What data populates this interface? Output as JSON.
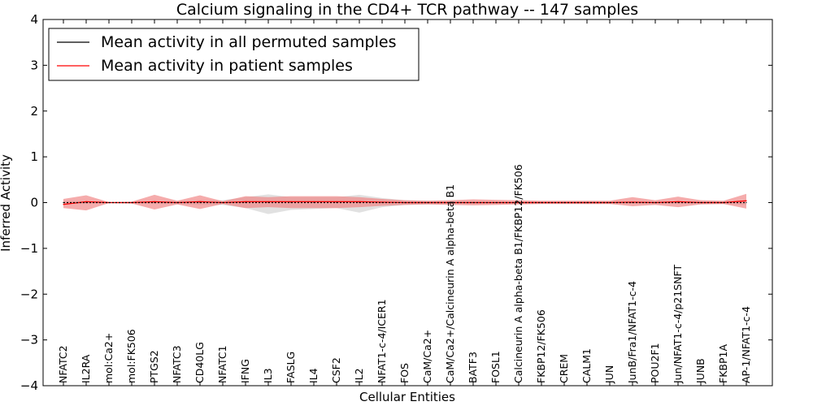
{
  "chart_data": {
    "type": "line",
    "title": "Calcium signaling in the CD4+ TCR pathway -- 147 samples",
    "xlabel": "Cellular Entities",
    "ylabel": "Inferred Activity",
    "ylim": [
      -4,
      4
    ],
    "yticks": [
      4,
      3,
      2,
      1,
      0,
      -1,
      -2,
      -3,
      -4
    ],
    "ytick_labels": [
      "4",
      "3",
      "2",
      "1",
      "0",
      "−1",
      "−2",
      "−3",
      "−4"
    ],
    "legend_position": "top-left",
    "categories": [
      "NFATC2",
      "IL2RA",
      "mol:Ca2+",
      "mol:FK506",
      "PTGS2",
      "NFATC3",
      "CD40LG",
      "NFATC1",
      "IFNG",
      "IL3",
      "FASLG",
      "IL4",
      "CSF2",
      "IL2",
      "NFAT1-c-4/ICER1",
      "FOS",
      "CaM/Ca2+",
      "CaM/Ca2+/Calcineurin A alpha-beta B1",
      "BATF3",
      "FOSL1",
      "Calcineurin A alpha-beta B1/FKBP12/FK506",
      "FKBP12/FK506",
      "CREM",
      "CALM1",
      "JUN",
      "JunB/Fra1/NFAT1-c-4",
      "POU2F1",
      "Jun/NFAT1-c-4/p21SNFT",
      "JUNB",
      "FKBP1A",
      "AP-1/NFAT1-c-4"
    ],
    "series": [
      {
        "name": "Mean activity in all permuted samples",
        "color": "#000000",
        "values": [
          0,
          0,
          0,
          0,
          0,
          0,
          0,
          0,
          0,
          0,
          0,
          0,
          0,
          0,
          0,
          0,
          0,
          0,
          0,
          0,
          0,
          0,
          0,
          0,
          0,
          0,
          0,
          0,
          0,
          0,
          0
        ],
        "upper": [
          0.03,
          0.03,
          0.01,
          0.01,
          0.03,
          0.03,
          0.05,
          0.05,
          0.12,
          0.18,
          0.12,
          0.12,
          0.12,
          0.17,
          0.1,
          0.05,
          0.04,
          0.03,
          0.03,
          0.03,
          0.02,
          0.02,
          0.02,
          0.03,
          0.03,
          0.03,
          0.03,
          0.03,
          0.03,
          0.03,
          0.05
        ],
        "lower": [
          -0.03,
          -0.03,
          -0.01,
          -0.01,
          -0.03,
          -0.03,
          -0.05,
          -0.05,
          -0.12,
          -0.25,
          -0.16,
          -0.14,
          -0.12,
          -0.22,
          -0.1,
          -0.05,
          -0.04,
          -0.03,
          -0.03,
          -0.03,
          -0.02,
          -0.02,
          -0.02,
          -0.03,
          -0.03,
          -0.03,
          -0.03,
          -0.03,
          -0.03,
          -0.03,
          -0.05
        ]
      },
      {
        "name": "Mean activity in patient samples",
        "color": "#ff0000",
        "band_color": "#f08080",
        "values": [
          -0.04,
          0.02,
          0,
          0,
          0.02,
          0,
          0.02,
          0,
          0.02,
          0.02,
          0.02,
          0.02,
          0.02,
          0.02,
          0.01,
          0,
          0,
          0,
          0,
          0,
          0,
          0,
          0,
          0,
          0,
          0.01,
          0,
          0.02,
          0,
          0,
          0.04
        ],
        "upper": [
          0.08,
          0.16,
          0.01,
          0.02,
          0.17,
          0.04,
          0.16,
          0.03,
          0.14,
          0.12,
          0.14,
          0.14,
          0.14,
          0.12,
          0.08,
          0.05,
          0.04,
          0.05,
          0.07,
          0.06,
          0.05,
          0.04,
          0.04,
          0.04,
          0.04,
          0.12,
          0.05,
          0.13,
          0.05,
          0.04,
          0.19
        ],
        "lower": [
          -0.12,
          -0.17,
          -0.01,
          -0.02,
          -0.15,
          -0.04,
          -0.14,
          -0.03,
          -0.12,
          -0.1,
          -0.12,
          -0.12,
          -0.12,
          -0.1,
          -0.07,
          -0.05,
          -0.04,
          -0.05,
          -0.06,
          -0.05,
          -0.04,
          -0.03,
          -0.03,
          -0.03,
          -0.03,
          -0.08,
          -0.05,
          -0.1,
          -0.04,
          -0.03,
          -0.13
        ]
      }
    ]
  }
}
